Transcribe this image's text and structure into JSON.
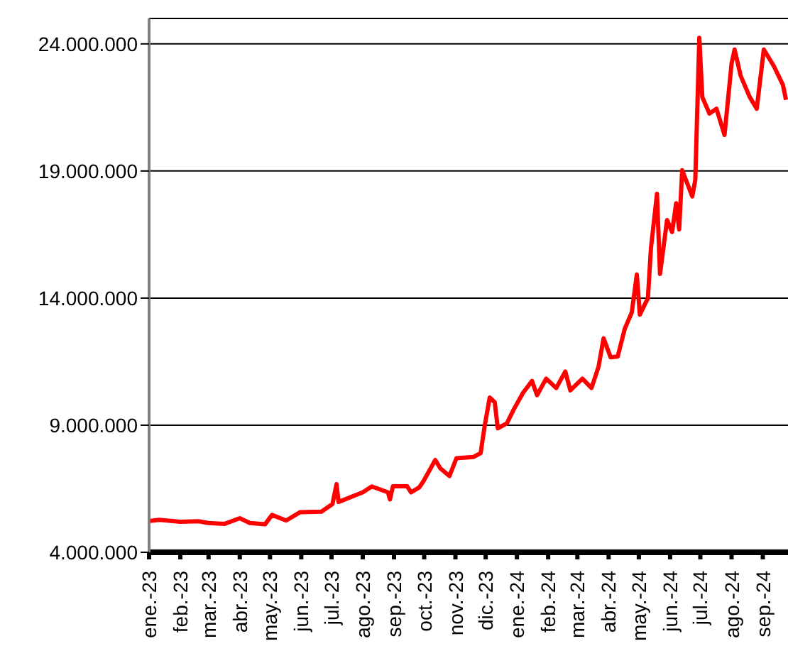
{
  "chart_data": {
    "type": "line",
    "series": [
      {
        "color": "#ff0000",
        "x": [
          "2023-01-01",
          "2023-01-11",
          "2023-02-01",
          "2023-02-19",
          "2023-03-01",
          "2023-03-17",
          "2023-04-01",
          "2023-04-11",
          "2023-04-26",
          "2023-05-03",
          "2023-05-17",
          "2023-05-31",
          "2023-06-21",
          "2023-07-02",
          "2023-07-06",
          "2023-07-08",
          "2023-08-01",
          "2023-08-10",
          "2023-08-26",
          "2023-08-28",
          "2023-08-31",
          "2023-09-14",
          "2023-09-18",
          "2023-09-26",
          "2023-09-30",
          "2023-10-12",
          "2023-10-17",
          "2023-10-26",
          "2023-11-02",
          "2023-11-19",
          "2023-11-26",
          "2023-11-30",
          "2023-12-05",
          "2023-12-10",
          "2023-12-13",
          "2023-12-22",
          "2023-12-29",
          "2024-01-07",
          "2024-01-16",
          "2024-01-21",
          "2024-01-30",
          "2024-02-09",
          "2024-02-18",
          "2024-02-23",
          "2024-03-06",
          "2024-03-15",
          "2024-03-22",
          "2024-03-27",
          "2024-04-03",
          "2024-04-10",
          "2024-04-17",
          "2024-04-24",
          "2024-04-29",
          "2024-05-02",
          "2024-05-10",
          "2024-05-13",
          "2024-05-19",
          "2024-05-22",
          "2024-05-29",
          "2024-06-03",
          "2024-06-07",
          "2024-06-10",
          "2024-06-13",
          "2024-06-23",
          "2024-06-26",
          "2024-06-30",
          "2024-07-03",
          "2024-07-10",
          "2024-07-17",
          "2024-07-25",
          "2024-08-01",
          "2024-08-04",
          "2024-08-10",
          "2024-08-19",
          "2024-08-26",
          "2024-09-02",
          "2024-09-12",
          "2024-09-21",
          "2024-09-24"
        ],
        "values": [
          5230000,
          5280000,
          5200000,
          5220000,
          5150000,
          5120000,
          5340000,
          5150000,
          5100000,
          5470000,
          5250000,
          5580000,
          5600000,
          5900000,
          6680000,
          5980000,
          6360000,
          6590000,
          6360000,
          6080000,
          6600000,
          6600000,
          6360000,
          6550000,
          6780000,
          7630000,
          7300000,
          7000000,
          7700000,
          7750000,
          7900000,
          8970000,
          10090000,
          9900000,
          8880000,
          9070000,
          9630000,
          10270000,
          10740000,
          10180000,
          10830000,
          10460000,
          11110000,
          10370000,
          10830000,
          10460000,
          11300000,
          12420000,
          11670000,
          11700000,
          12790000,
          13440000,
          14930000,
          13350000,
          14000000,
          15960000,
          18100000,
          14950000,
          17070000,
          16600000,
          17730000,
          16700000,
          19030000,
          18000000,
          18650000,
          24240000,
          21900000,
          21260000,
          21450000,
          20420000,
          23220000,
          23780000,
          22750000,
          21910000,
          21450000,
          23780000,
          23120000,
          22380000,
          21800000
        ]
      }
    ],
    "xlim": [
      "2023-01-01",
      "2024-09-26"
    ],
    "xticks": [
      {
        "value": "2023-01-01",
        "label": "ene.-23"
      },
      {
        "value": "2023-02-01",
        "label": "feb.-23"
      },
      {
        "value": "2023-03-01",
        "label": "mar.-23"
      },
      {
        "value": "2023-04-01",
        "label": "abr.-23"
      },
      {
        "value": "2023-05-01",
        "label": "may.-23"
      },
      {
        "value": "2023-06-01",
        "label": "jun.-23"
      },
      {
        "value": "2023-07-01",
        "label": "jul.-23"
      },
      {
        "value": "2023-08-01",
        "label": "ago.-23"
      },
      {
        "value": "2023-09-01",
        "label": "sep.-23"
      },
      {
        "value": "2023-10-01",
        "label": "oct.-23"
      },
      {
        "value": "2023-11-01",
        "label": "nov.-23"
      },
      {
        "value": "2023-12-01",
        "label": "dic.-23"
      },
      {
        "value": "2024-01-01",
        "label": "ene.-24"
      },
      {
        "value": "2024-02-01",
        "label": "feb.-24"
      },
      {
        "value": "2024-03-01",
        "label": "mar.-24"
      },
      {
        "value": "2024-04-01",
        "label": "abr.-24"
      },
      {
        "value": "2024-05-01",
        "label": "may.-24"
      },
      {
        "value": "2024-06-01",
        "label": "jun.-24"
      },
      {
        "value": "2024-07-01",
        "label": "jul.-24"
      },
      {
        "value": "2024-08-01",
        "label": "ago.-24"
      },
      {
        "value": "2024-09-01",
        "label": "sep.-24"
      }
    ],
    "ylim": [
      4000000,
      25000000
    ],
    "yticks": [
      {
        "value": 4000000,
        "label": "4.000.000"
      },
      {
        "value": 9000000,
        "label": "9.000.000"
      },
      {
        "value": 14000000,
        "label": "14.000.000"
      },
      {
        "value": 19000000,
        "label": "19.000.000"
      },
      {
        "value": 24000000,
        "label": "24.000.000"
      }
    ],
    "grid": "y",
    "legend": false,
    "marker": "none",
    "line_style": "solid"
  }
}
